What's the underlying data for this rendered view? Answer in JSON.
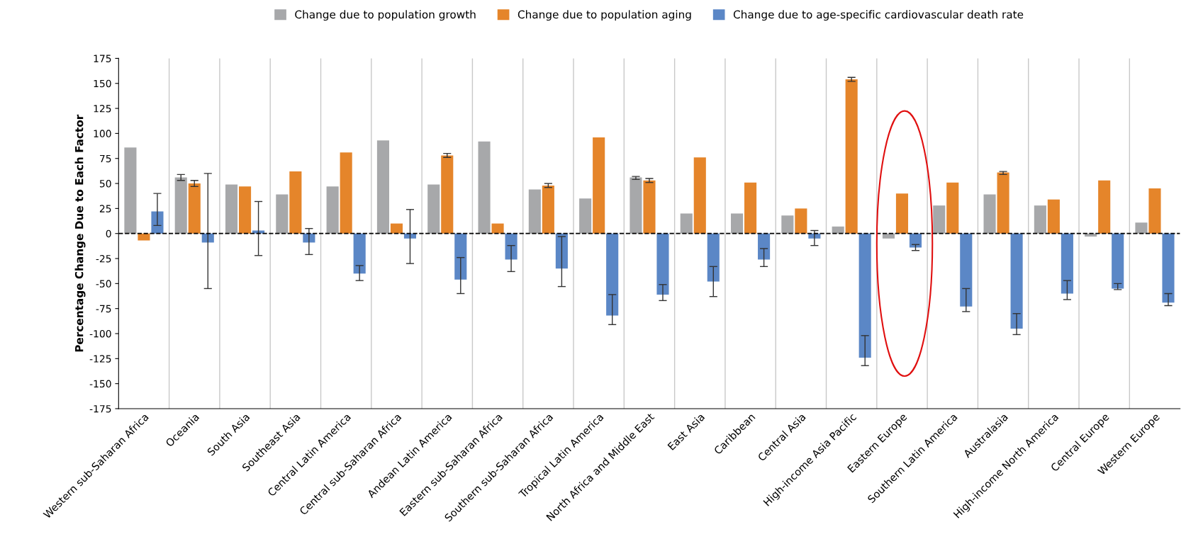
{
  "chart_data": {
    "type": "bar",
    "ylabel": "Percentage Change Due to Each Factor",
    "categories": [
      "Western sub-Saharan Africa",
      "Oceania",
      "South Asia",
      "Southeast Asia",
      "Central Latin America",
      "Central sub-Saharan Africa",
      "Andean Latin America",
      "Eastern sub-Saharan Africa",
      "Southern sub-Saharan Africa",
      "Tropical Latin America",
      "North Africa and Middle East",
      "East Asia",
      "Caribbean",
      "Central Asia",
      "High-income Asia Pacific",
      "Eastern Europe",
      "Southern Latin America",
      "Australasia",
      "High-income North America",
      "Central Europe",
      "Western Europe"
    ],
    "series": [
      {
        "name": "Change due to population growth",
        "color": "#a7a8aa",
        "values": [
          86,
          56,
          49,
          39,
          47,
          93,
          49,
          92,
          44,
          35,
          56,
          20,
          20,
          18,
          7,
          -5,
          28,
          39,
          28,
          -3,
          11
        ],
        "errors": [
          null,
          [
            53,
            59
          ],
          null,
          null,
          null,
          null,
          null,
          null,
          null,
          null,
          [
            54,
            57
          ],
          null,
          null,
          null,
          null,
          null,
          null,
          null,
          null,
          null,
          null
        ]
      },
      {
        "name": "Change due to population aging",
        "color": "#e5852a",
        "values": [
          -7,
          50,
          47,
          62,
          81,
          10,
          78,
          10,
          48,
          96,
          53,
          76,
          51,
          25,
          154,
          40,
          51,
          61,
          34,
          53,
          45
        ],
        "errors": [
          null,
          [
            47,
            53
          ],
          null,
          null,
          null,
          null,
          [
            76,
            80
          ],
          null,
          [
            46,
            50
          ],
          null,
          [
            51,
            55
          ],
          null,
          null,
          null,
          [
            152,
            156
          ],
          null,
          null,
          [
            59,
            62
          ],
          null,
          null,
          null
        ]
      },
      {
        "name": "Change due to age-specific cardiovascular death rate",
        "color": "#5b87c6",
        "values": [
          22,
          -9,
          3,
          -9,
          -40,
          -5,
          -46,
          -26,
          -35,
          -82,
          -61,
          -48,
          -26,
          -5,
          -124,
          -14,
          -73,
          -95,
          -60,
          -55,
          -69
        ],
        "errors": [
          [
            8,
            40
          ],
          [
            -55,
            60
          ],
          [
            -22,
            32
          ],
          [
            -21,
            5
          ],
          [
            -47,
            -32
          ],
          [
            -30,
            24
          ],
          [
            -60,
            -24
          ],
          [
            -38,
            -12
          ],
          [
            -53,
            -3
          ],
          [
            -91,
            -61
          ],
          [
            -67,
            -51
          ],
          [
            -63,
            -33
          ],
          [
            -33,
            -15
          ],
          [
            -12,
            3
          ],
          [
            -132,
            -102
          ],
          [
            -17,
            -11
          ],
          [
            -78,
            -55
          ],
          [
            -101,
            -80
          ],
          [
            -66,
            -47
          ],
          [
            -56,
            -50
          ],
          [
            -72,
            -60
          ]
        ]
      }
    ],
    "ylim": [
      -175,
      175
    ],
    "yticks": [
      -175,
      -150,
      -125,
      -100,
      -75,
      -50,
      -25,
      0,
      25,
      50,
      75,
      100,
      125,
      150,
      175
    ],
    "ref_lines": [
      {
        "axis": "y",
        "value": 0,
        "color": "#000000",
        "line_style": "dashed"
      }
    ],
    "grid": "x",
    "legend": "top"
  }
}
